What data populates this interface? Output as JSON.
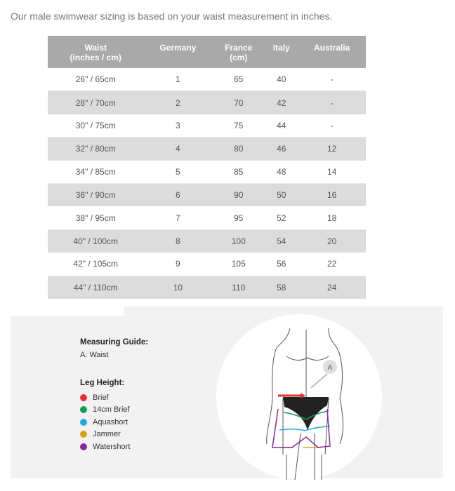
{
  "intro": "Our male swimwear sizing is based on your waist measurement in inches.",
  "table": {
    "headers": [
      [
        "Waist",
        "(inches / cm)"
      ],
      [
        "Germany",
        ""
      ],
      [
        "France",
        "(cm)"
      ],
      [
        "Italy",
        ""
      ],
      [
        "Australia",
        ""
      ]
    ],
    "rows": [
      [
        "26\" / 65cm",
        "1",
        "65",
        "40",
        "-"
      ],
      [
        "28\" / 70cm",
        "2",
        "70",
        "42",
        "-"
      ],
      [
        "30\" / 75cm",
        "3",
        "75",
        "44",
        "-"
      ],
      [
        "32\" / 80cm",
        "4",
        "80",
        "46",
        "12"
      ],
      [
        "34\" / 85cm",
        "5",
        "85",
        "48",
        "14"
      ],
      [
        "36\" / 90cm",
        "6",
        "90",
        "50",
        "16"
      ],
      [
        "38\" / 95cm",
        "7",
        "95",
        "52",
        "18"
      ],
      [
        "40\" / 100cm",
        "8",
        "100",
        "54",
        "20"
      ],
      [
        "42\" / 105cm",
        "9",
        "105",
        "56",
        "22"
      ],
      [
        "44\" / 110cm",
        "10",
        "110",
        "58",
        "24"
      ]
    ]
  },
  "guide": {
    "title": "Measuring Guide:",
    "item": "A: Waist",
    "leg_title": "Leg Height:",
    "legend": [
      {
        "label": "Brief",
        "color": "#e03030"
      },
      {
        "label": "14cm Brief",
        "color": "#1a9a50"
      },
      {
        "label": "Aquashort",
        "color": "#2aa6e0"
      },
      {
        "label": "Jammer",
        "color": "#d4a020"
      },
      {
        "label": "Watershort",
        "color": "#8a2a9a"
      }
    ],
    "marker": "A"
  }
}
